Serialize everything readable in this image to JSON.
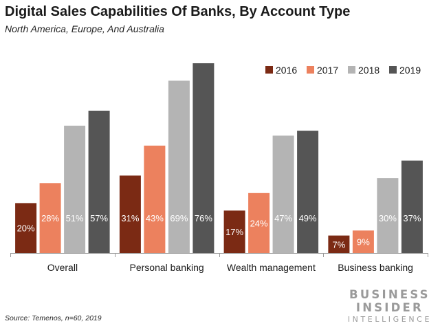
{
  "chart_data": {
    "type": "bar",
    "title": "Digital Sales Capabilities Of Banks, By Account Type",
    "subtitle": "North America, Europe, And Australia",
    "categories": [
      "Overall",
      "Personal banking",
      "Wealth management",
      "Business banking"
    ],
    "series": [
      {
        "name": "2016",
        "color": "#7b2a14",
        "values": [
          20,
          31,
          17,
          7
        ]
      },
      {
        "name": "2017",
        "color": "#ec815e",
        "values": [
          28,
          43,
          24,
          9
        ]
      },
      {
        "name": "2018",
        "color": "#b4b4b4",
        "values": [
          51,
          69,
          47,
          30
        ]
      },
      {
        "name": "2019",
        "color": "#555555",
        "values": [
          57,
          76,
          49,
          37
        ]
      }
    ],
    "value_suffix": "%",
    "ylim": [
      0,
      76
    ],
    "grid": false,
    "legend_position": "top-right"
  },
  "source": "Source: Temenos, n=60, 2019",
  "logo": {
    "line1": "BUSINESS",
    "line2": "INSIDER",
    "line3": "INTELLIGENCE"
  }
}
